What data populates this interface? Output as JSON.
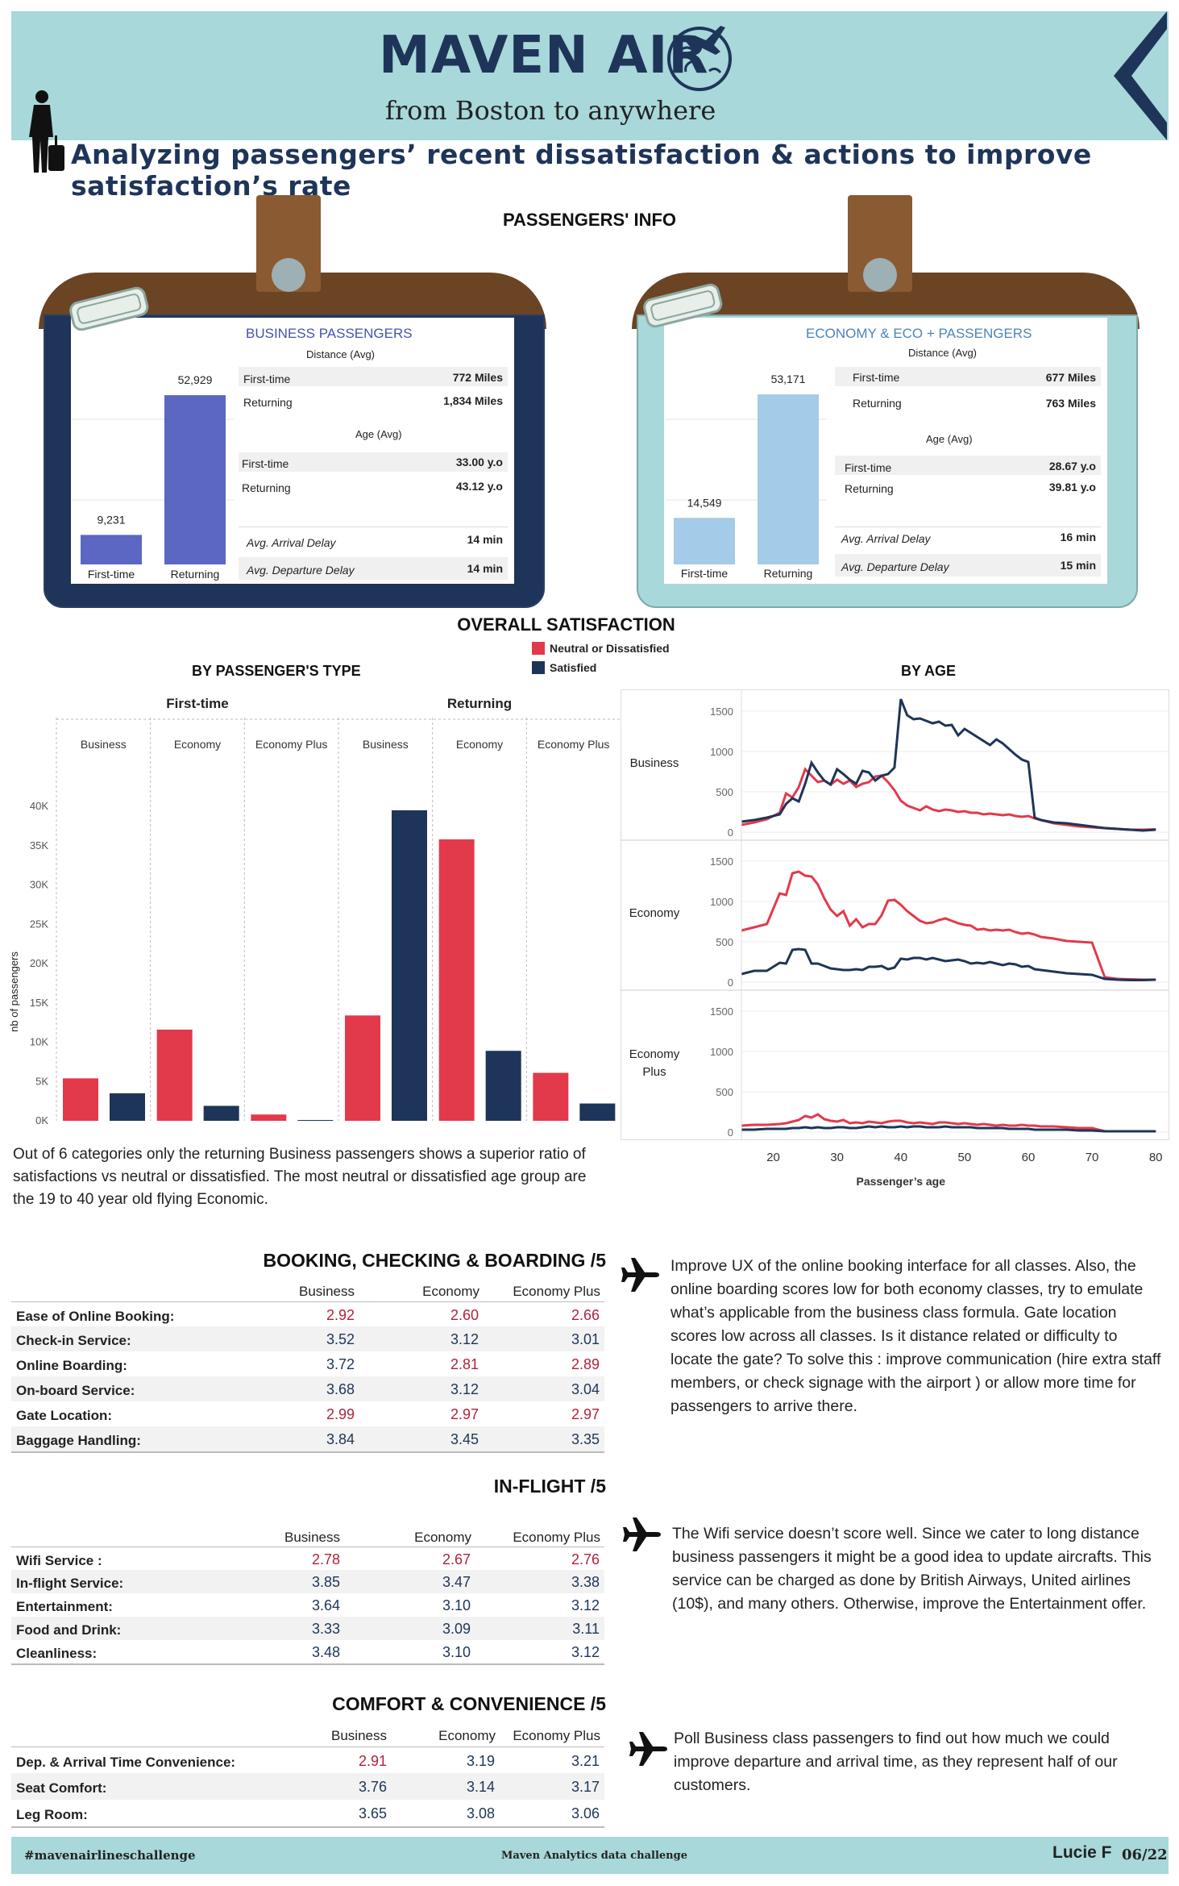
{
  "header": {
    "brand": "MAVEN AIR",
    "tagline": "from Boston to anywhere",
    "subtitle": "Analyzing passengers’ recent dissatisfaction & actions to improve satisfaction’s rate"
  },
  "passengers_info": {
    "title": "PASSENGERS' INFO",
    "business": {
      "title": "BUSINESS PASSENGERS",
      "distance_label": "Distance (Avg)",
      "age_label": "Age (Avg)",
      "firsttime_count": "9,231",
      "returning_count": "52,929",
      "bar_label_first": "First-time",
      "bar_label_returning": "Returning",
      "rows": {
        "dist_first_label": "First-time",
        "dist_first_value": "772 Miles",
        "dist_ret_label": "Returning",
        "dist_ret_value": "1,834 Miles",
        "age_first_label": "First-time",
        "age_first_value": "33.00 y.o",
        "age_ret_label": "Returning",
        "age_ret_value": "43.12 y.o",
        "arr_label": "Avg. Arrival Delay",
        "arr_value": "14 min",
        "dep_label": "Avg. Departure Delay",
        "dep_value": "14 min"
      },
      "bar_values": [
        9231,
        52929
      ]
    },
    "economy": {
      "title": "ECONOMY & ECO + PASSENGERS",
      "distance_label": "Distance (Avg)",
      "age_label": "Age (Avg)",
      "firsttime_count": "14,549",
      "returning_count": "53,171",
      "bar_label_first": "First-time",
      "bar_label_returning": "Returning",
      "rows": {
        "dist_first_label": "First-time",
        "dist_first_value": "677 Miles",
        "dist_ret_label": "Returning",
        "dist_ret_value": "763 Miles",
        "age_first_label": "First-time",
        "age_first_value": "28.67 y.o",
        "age_ret_label": "Returning",
        "age_ret_value": "39.81 y.o",
        "arr_label": "Avg. Arrival Delay",
        "arr_value": "16 min",
        "dep_label": "Avg. Departure Delay",
        "dep_value": "15 min"
      },
      "bar_values": [
        14549,
        53171
      ]
    },
    "colors": {
      "business_bar": "#5b67c2",
      "economy_bar": "#a4cbe8",
      "business_card": "#1e3559",
      "economy_card": "#a8d8da"
    }
  },
  "overall": {
    "title": "OVERALL SATISFACTION",
    "legend_neutral": "Neutral or Dissatisfied",
    "legend_satisfied": "Satisfied",
    "by_type_title": "BY PASSENGER'S TYPE",
    "by_age_title": "BY AGE",
    "note": "Out of 6 categories only the returning Business passengers shows a superior ratio of satisfactions vs neutral or dissatisfied. The most neutral or dissatisfied age group are the 19 to 40 year old flying Economic."
  },
  "colors": {
    "neutral": "#e23a4b",
    "satisfied": "#1e3559",
    "accent_red": "#b0233a",
    "accent_navy": "#1e3559"
  },
  "chart_data": [
    {
      "type": "bar",
      "title": "BY PASSENGER'S TYPE",
      "ylabel": "nb of passengers",
      "ylim": [
        0,
        40000
      ],
      "yticks": [
        "0K",
        "5K",
        "10K",
        "15K",
        "20K",
        "25K",
        "30K",
        "35K",
        "40K"
      ],
      "groups": [
        "First-time",
        "Returning"
      ],
      "categories": [
        "Business",
        "Economy",
        "Economy Plus",
        "Business",
        "Economy",
        "Economy Plus"
      ],
      "series": [
        {
          "name": "Neutral or Dissatisfied",
          "values": [
            5400,
            11600,
            800,
            13400,
            35800,
            6100
          ]
        },
        {
          "name": "Satisfied",
          "values": [
            3500,
            1900,
            100,
            39500,
            8900,
            2200
          ]
        }
      ],
      "grid": false,
      "legend": "top-center"
    },
    {
      "type": "line",
      "title": "BY AGE",
      "xlabel": "Passenger’s age",
      "xlim": [
        15,
        82
      ],
      "xticks": [
        20,
        30,
        40,
        50,
        60,
        70,
        80
      ],
      "ylim": [
        0,
        1700
      ],
      "yticks": [
        "0",
        "500",
        "1000",
        "1500"
      ],
      "panels": [
        "Business",
        "Economy",
        "Economy Plus"
      ],
      "x": [
        15,
        17,
        19,
        21,
        22,
        23,
        24,
        25,
        26,
        27,
        28,
        29,
        30,
        31,
        32,
        33,
        34,
        35,
        36,
        37,
        38,
        39,
        40,
        41,
        42,
        43,
        44,
        45,
        46,
        47,
        48,
        49,
        50,
        51,
        52,
        53,
        54,
        55,
        56,
        57,
        58,
        59,
        60,
        61,
        62,
        64,
        66,
        68,
        70,
        72,
        74,
        76,
        78,
        80
      ],
      "series": [
        {
          "name": "Business - Neutral or Dissatisfied",
          "values": [
            90,
            120,
            160,
            240,
            480,
            430,
            560,
            780,
            700,
            620,
            640,
            590,
            650,
            600,
            640,
            560,
            600,
            620,
            690,
            700,
            620,
            520,
            390,
            330,
            300,
            270,
            320,
            280,
            260,
            280,
            270,
            250,
            260,
            240,
            240,
            220,
            230,
            220,
            210,
            220,
            200,
            190,
            200,
            170,
            150,
            110,
            90,
            70,
            60,
            50,
            40,
            30,
            30,
            35
          ]
        },
        {
          "name": "Business - Satisfied",
          "values": [
            130,
            150,
            180,
            220,
            350,
            420,
            380,
            600,
            860,
            740,
            640,
            590,
            780,
            720,
            650,
            600,
            760,
            740,
            640,
            700,
            720,
            800,
            1650,
            1450,
            1400,
            1410,
            1380,
            1350,
            1370,
            1320,
            1330,
            1200,
            1280,
            1230,
            1180,
            1130,
            1080,
            1150,
            1100,
            1030,
            960,
            900,
            870,
            180,
            150,
            120,
            110,
            90,
            70,
            50,
            40,
            30,
            20,
            30
          ]
        },
        {
          "name": "Economy - Neutral or Dissatisfied",
          "values": [
            640,
            680,
            720,
            1100,
            1080,
            1350,
            1370,
            1320,
            1310,
            1210,
            1040,
            900,
            820,
            880,
            700,
            780,
            680,
            720,
            720,
            830,
            1010,
            1020,
            960,
            880,
            820,
            760,
            730,
            740,
            770,
            790,
            760,
            730,
            710,
            700,
            650,
            660,
            640,
            650,
            640,
            650,
            620,
            600,
            610,
            590,
            560,
            540,
            510,
            500,
            490,
            60,
            40,
            35,
            30,
            30
          ]
        },
        {
          "name": "Economy - Satisfied",
          "values": [
            100,
            140,
            140,
            240,
            230,
            400,
            410,
            400,
            230,
            230,
            200,
            170,
            160,
            150,
            150,
            160,
            150,
            190,
            190,
            200,
            160,
            180,
            290,
            280,
            300,
            300,
            280,
            300,
            280,
            260,
            270,
            280,
            260,
            230,
            240,
            230,
            250,
            230,
            210,
            230,
            220,
            190,
            200,
            160,
            150,
            130,
            110,
            100,
            90,
            40,
            30,
            25,
            25,
            30
          ]
        },
        {
          "name": "Economy Plus - Neutral or Dissatisfied",
          "values": [
            80,
            90,
            90,
            100,
            110,
            130,
            150,
            200,
            180,
            220,
            160,
            140,
            130,
            150,
            110,
            120,
            110,
            130,
            120,
            110,
            130,
            140,
            140,
            120,
            110,
            120,
            110,
            100,
            120,
            120,
            110,
            100,
            110,
            100,
            90,
            100,
            90,
            80,
            90,
            80,
            80,
            90,
            80,
            80,
            70,
            70,
            60,
            50,
            50,
            10,
            10,
            10,
            10,
            10
          ]
        },
        {
          "name": "Economy Plus - Satisfied",
          "values": [
            30,
            30,
            40,
            40,
            40,
            50,
            50,
            60,
            50,
            60,
            50,
            50,
            60,
            60,
            50,
            50,
            60,
            70,
            60,
            70,
            60,
            60,
            70,
            60,
            70,
            70,
            60,
            60,
            60,
            70,
            60,
            60,
            60,
            60,
            50,
            50,
            50,
            50,
            50,
            40,
            40,
            40,
            40,
            30,
            30,
            30,
            30,
            20,
            20,
            10,
            10,
            10,
            10,
            10
          ]
        }
      ],
      "grid": true
    }
  ],
  "booking": {
    "title": "BOOKING, CHECKING & BOARDING /5",
    "headers": [
      "Business",
      "Economy",
      "Economy Plus"
    ],
    "rows": [
      {
        "label": "Ease of Online Booking:",
        "values": [
          "2.92",
          "2.60",
          "2.66"
        ],
        "low": [
          true,
          true,
          true
        ]
      },
      {
        "label": "Check-in Service:",
        "values": [
          "3.52",
          "3.12",
          "3.01"
        ],
        "low": [
          false,
          false,
          false
        ]
      },
      {
        "label": "Online Boarding:",
        "values": [
          "3.72",
          "2.81",
          "2.89"
        ],
        "low": [
          false,
          true,
          true
        ]
      },
      {
        "label": "On-board Service:",
        "values": [
          "3.68",
          "3.12",
          "3.04"
        ],
        "low": [
          false,
          false,
          false
        ]
      },
      {
        "label": "Gate Location:",
        "values": [
          "2.99",
          "2.97",
          "2.97"
        ],
        "low": [
          true,
          true,
          true
        ]
      },
      {
        "label": "Baggage Handling:",
        "values": [
          "3.84",
          "3.45",
          "3.35"
        ],
        "low": [
          false,
          false,
          false
        ]
      }
    ],
    "comment": "Improve UX of the online booking interface for all classes. Also, the online boarding scores low for both economy classes, try to emulate what’s applicable from the business class formula. Gate location scores low across all classes. Is it distance related or difficulty to locate the gate? To solve this : improve communication (hire extra staff members, or check signage with the airport ) or allow more time for passengers to arrive there."
  },
  "inflight": {
    "title": "IN-FLIGHT /5",
    "headers": [
      "Business",
      "Economy",
      "Economy Plus"
    ],
    "rows": [
      {
        "label": "Wifi Service :",
        "values": [
          "2.78",
          "2.67",
          "2.76"
        ],
        "low": [
          true,
          true,
          true
        ]
      },
      {
        "label": "In-flight Service:",
        "values": [
          "3.85",
          "3.47",
          "3.38"
        ],
        "low": [
          false,
          false,
          false
        ]
      },
      {
        "label": "Entertainment:",
        "values": [
          "3.64",
          "3.10",
          "3.12"
        ],
        "low": [
          false,
          false,
          false
        ]
      },
      {
        "label": "Food and Drink:",
        "values": [
          "3.33",
          "3.09",
          "3.11"
        ],
        "low": [
          false,
          false,
          false
        ]
      },
      {
        "label": "Cleanliness:",
        "values": [
          "3.48",
          "3.10",
          "3.12"
        ],
        "low": [
          false,
          false,
          false
        ]
      }
    ],
    "comment": "The Wifi service doesn’t score well. Since we cater to long distance business passengers it might be a good idea to update aircrafts. This service can be charged as done by British Airways, United airlines (10$), and many others. Otherwise, improve the Entertainment offer."
  },
  "comfort": {
    "title": "COMFORT & CONVENIENCE /5",
    "headers": [
      "Business",
      "Economy",
      "Economy Plus"
    ],
    "rows": [
      {
        "label": "Dep. & Arrival Time Convenience:",
        "values": [
          "2.91",
          "3.19",
          "3.21"
        ],
        "low": [
          true,
          false,
          false
        ]
      },
      {
        "label": "Seat Comfort:",
        "values": [
          "3.76",
          "3.14",
          "3.17"
        ],
        "low": [
          false,
          false,
          false
        ]
      },
      {
        "label": "Leg Room:",
        "values": [
          "3.65",
          "3.08",
          "3.06"
        ],
        "low": [
          false,
          false,
          false
        ]
      }
    ],
    "comment": "Poll Business class passengers to find out how much we could improve departure and arrival time, as they represent half of our customers."
  },
  "footer": {
    "hashtag": "#mavenairlineschallenge",
    "center": "Maven Analytics data challenge",
    "author": "Lucie F",
    "date": "06/22"
  },
  "icons": [
    "globe-plane-icon",
    "traveler-icon",
    "chevron-left-icon",
    "airplane-icon",
    "immigration-stamp-icon"
  ]
}
